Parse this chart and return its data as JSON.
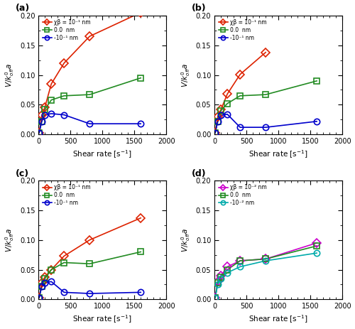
{
  "panels": [
    {
      "label": "(a)",
      "legend_entries": [
        "χβ = 10⁻¹ nm",
        "0.0  nm",
        "-10⁻¹ nm"
      ],
      "series": [
        {
          "x": [
            10,
            50,
            100,
            200,
            400,
            800,
            1600
          ],
          "y": [
            0.003,
            0.032,
            0.046,
            0.085,
            0.12,
            0.165,
            0.205
          ],
          "color": "#dd2200",
          "marker": "D"
        },
        {
          "x": [
            10,
            50,
            100,
            200,
            400,
            800,
            1600
          ],
          "y": [
            0.003,
            0.022,
            0.042,
            0.058,
            0.065,
            0.067,
            0.095
          ],
          "color": "#228B22",
          "marker": "s"
        },
        {
          "x": [
            10,
            50,
            100,
            200,
            400,
            800,
            1600
          ],
          "y": [
            0.003,
            0.022,
            0.033,
            0.035,
            0.033,
            0.018,
            0.018
          ],
          "color": "#0000cc",
          "marker": "o"
        }
      ]
    },
    {
      "label": "(b)",
      "legend_entries": [
        "χβ = 10⁻¹ nm",
        "0.0  nm",
        "-10⁻¹ nm"
      ],
      "series": [
        {
          "x": [
            10,
            50,
            100,
            200,
            400,
            800,
            1600
          ],
          "y": [
            0.003,
            0.03,
            0.042,
            0.068,
            0.101,
            0.138,
            null
          ],
          "color": "#dd2200",
          "marker": "D"
        },
        {
          "x": [
            10,
            50,
            100,
            200,
            400,
            800,
            1600
          ],
          "y": [
            0.003,
            0.022,
            0.04,
            0.052,
            0.065,
            0.067,
            0.09
          ],
          "color": "#228B22",
          "marker": "s"
        },
        {
          "x": [
            10,
            50,
            100,
            200,
            400,
            800,
            1600
          ],
          "y": [
            0.003,
            0.022,
            0.032,
            0.034,
            0.012,
            0.012,
            0.022
          ],
          "color": "#0000cc",
          "marker": "o"
        }
      ]
    },
    {
      "label": "(c)",
      "legend_entries": [
        "χβ = 10⁻¹ nm",
        "0.0  nm",
        "-10⁻¹ nm"
      ],
      "series": [
        {
          "x": [
            10,
            50,
            100,
            200,
            400,
            800,
            1600
          ],
          "y": [
            0.003,
            0.028,
            0.038,
            0.05,
            0.073,
            0.1,
            0.137
          ],
          "color": "#dd2200",
          "marker": "D"
        },
        {
          "x": [
            10,
            50,
            100,
            200,
            400,
            800,
            1600
          ],
          "y": [
            0.003,
            0.022,
            0.035,
            0.05,
            0.062,
            0.06,
            0.08
          ],
          "color": "#228B22",
          "marker": "s"
        },
        {
          "x": [
            10,
            50,
            100,
            200,
            400,
            800,
            1600
          ],
          "y": [
            0.003,
            0.022,
            0.028,
            0.03,
            0.012,
            0.01,
            0.012
          ],
          "color": "#0000cc",
          "marker": "o"
        }
      ]
    },
    {
      "label": "(d)",
      "legend_entries": [
        "χβ = 10⁻² nm",
        "0.0  nm",
        "-10⁻² nm"
      ],
      "series": [
        {
          "x": [
            10,
            50,
            100,
            200,
            400,
            800,
            1600
          ],
          "y": [
            0.003,
            0.03,
            0.04,
            0.055,
            0.065,
            0.068,
            0.095
          ],
          "color": "#cc00cc",
          "marker": "D"
        },
        {
          "x": [
            10,
            50,
            100,
            200,
            400,
            800,
            1600
          ],
          "y": [
            0.003,
            0.028,
            0.038,
            0.05,
            0.065,
            0.068,
            0.09
          ],
          "color": "#228B22",
          "marker": "s"
        },
        {
          "x": [
            10,
            50,
            100,
            200,
            400,
            800,
            1600
          ],
          "y": [
            0.003,
            0.025,
            0.035,
            0.045,
            0.055,
            0.065,
            0.078
          ],
          "color": "#00aaaa",
          "marker": "o"
        }
      ]
    }
  ],
  "ylim": [
    0,
    0.2
  ],
  "xlim": [
    0,
    2000
  ],
  "yticks": [
    0.0,
    0.05,
    0.1,
    0.15,
    0.2
  ],
  "xticks": [
    0,
    500,
    1000,
    1500,
    2000
  ]
}
